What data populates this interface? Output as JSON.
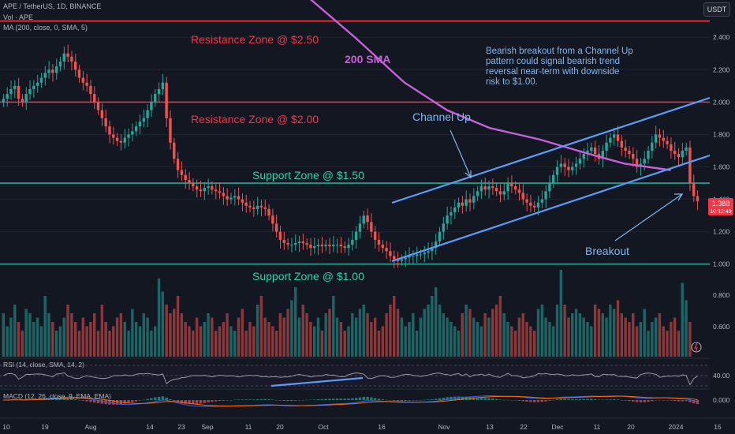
{
  "header": {
    "symbol_line": "APE / TetherUS, 1D, BINANCE",
    "volume_line": "Vol · APE",
    "ma_line": "MA (200, close, 0, SMA, 5)",
    "currency_button": "USDT"
  },
  "chart_data": {
    "type": "candlestick",
    "price_axis": {
      "ticks": [
        "2.400",
        "2.200",
        "2.000",
        "1.800",
        "1.600",
        "1.400",
        "1.200",
        "1.000"
      ],
      "range": [
        0.95,
        2.63
      ]
    },
    "volume_axis": {
      "ticks": [
        "0.800",
        "0.600"
      ]
    },
    "rsi_panel": {
      "label": "RSI (14, close, SMA, 14, 2)",
      "tick": "40.00"
    },
    "macd_panel": {
      "label": "MACD (12, 26, close, 9, EMA, EMA)",
      "tick": "0.000"
    },
    "time_axis": [
      "10",
      "19",
      "Aug",
      "14",
      "23",
      "Sep",
      "11",
      "20",
      "Oct",
      "16",
      "Nov",
      "13",
      "22",
      "Dec",
      "11",
      "20",
      "2024",
      "15"
    ],
    "last_price": {
      "value": "1.388",
      "countdown": "10:12:49"
    },
    "zones": [
      {
        "label": "Resistance Zone @ $2.50",
        "value": 2.5,
        "color": "#f23645"
      },
      {
        "label": "Resistance Zone @ $2.00",
        "value": 2.0,
        "color": "#f23645"
      },
      {
        "label": "Support Zone @ $1.50",
        "value": 1.5,
        "color": "#22ab94"
      },
      {
        "label": "Support Zone @ $1.00",
        "value": 1.0,
        "color": "#22ab94"
      }
    ],
    "annotations": {
      "sma": "200 SMA",
      "channel": "Channel Up",
      "breakout": "Breakout",
      "note": "Bearish breakout from a Channel Up pattern could signal bearish trend reversal near-term with downside risk to $1.00."
    },
    "series_shape": {
      "price_closes": [
        2.02,
        2.05,
        2.08,
        2.1,
        2.02,
        2.0,
        2.05,
        2.08,
        2.1,
        2.12,
        2.15,
        2.18,
        2.2,
        2.18,
        2.22,
        2.25,
        2.3,
        2.28,
        2.25,
        2.2,
        2.15,
        2.12,
        2.1,
        2.05,
        2.0,
        1.95,
        1.9,
        1.85,
        1.8,
        1.78,
        1.76,
        1.75,
        1.78,
        1.8,
        1.82,
        1.85,
        1.88,
        1.9,
        1.95,
        2.0,
        2.05,
        2.08,
        2.12,
        1.9,
        1.75,
        1.65,
        1.58,
        1.55,
        1.52,
        1.5,
        1.48,
        1.46,
        1.45,
        1.47,
        1.48,
        1.46,
        1.45,
        1.44,
        1.42,
        1.4,
        1.41,
        1.42,
        1.4,
        1.38,
        1.36,
        1.35,
        1.34,
        1.36,
        1.35,
        1.34,
        1.3,
        1.25,
        1.2,
        1.15,
        1.13,
        1.12,
        1.12,
        1.13,
        1.14,
        1.13,
        1.12,
        1.1,
        1.11,
        1.12,
        1.11,
        1.12,
        1.11,
        1.12,
        1.12,
        1.11,
        1.1,
        1.12,
        1.15,
        1.2,
        1.25,
        1.3,
        1.26,
        1.2,
        1.15,
        1.12,
        1.1,
        1.08,
        1.05,
        1.03,
        1.02,
        1.03,
        1.04,
        1.05,
        1.05,
        1.06,
        1.06,
        1.07,
        1.08,
        1.1,
        1.14,
        1.2,
        1.25,
        1.3,
        1.32,
        1.35,
        1.38,
        1.36,
        1.4,
        1.38,
        1.42,
        1.45,
        1.48,
        1.46,
        1.48,
        1.47,
        1.45,
        1.43,
        1.45,
        1.5,
        1.48,
        1.46,
        1.44,
        1.4,
        1.38,
        1.36,
        1.35,
        1.38,
        1.4,
        1.45,
        1.5,
        1.55,
        1.6,
        1.62,
        1.6,
        1.58,
        1.6,
        1.62,
        1.65,
        1.68,
        1.7,
        1.72,
        1.68,
        1.65,
        1.7,
        1.75,
        1.78,
        1.8,
        1.76,
        1.72,
        1.7,
        1.68,
        1.65,
        1.6,
        1.62,
        1.65,
        1.7,
        1.75,
        1.8,
        1.78,
        1.76,
        1.74,
        1.7,
        1.68,
        1.66,
        1.7,
        1.72,
        1.5,
        1.42,
        1.388
      ],
      "sma200": [
        [
          0.42,
          2.7
        ],
        [
          0.5,
          2.4
        ],
        [
          0.57,
          2.12
        ],
        [
          0.63,
          1.95
        ],
        [
          0.69,
          1.84
        ],
        [
          0.76,
          1.77
        ],
        [
          0.83,
          1.68
        ],
        [
          0.88,
          1.62
        ],
        [
          0.945,
          1.58
        ]
      ],
      "volume": [
        0.5,
        0.35,
        0.45,
        0.6,
        0.4,
        0.3,
        0.55,
        0.5,
        0.4,
        0.45,
        0.35,
        0.7,
        0.5,
        0.4,
        0.3,
        0.35,
        0.45,
        0.6,
        0.5,
        0.4,
        0.3,
        0.45,
        0.35,
        0.4,
        0.5,
        0.3,
        0.6,
        0.4,
        0.3,
        0.35,
        0.45,
        0.5,
        0.4,
        0.3,
        0.55,
        0.4,
        0.35,
        0.5,
        0.45,
        0.3,
        0.35,
        0.9,
        0.75,
        0.6,
        0.5,
        0.55,
        0.7,
        0.5,
        0.4,
        0.35,
        0.3,
        0.45,
        0.35,
        0.4,
        0.5,
        0.45,
        0.3,
        0.35,
        0.4,
        0.5,
        0.35,
        0.3,
        0.45,
        0.55,
        0.3,
        0.4,
        0.35,
        0.6,
        0.7,
        0.45,
        0.4,
        0.35,
        0.3,
        0.5,
        0.45,
        0.55,
        0.65,
        0.8,
        0.45,
        0.6,
        0.5,
        0.4,
        0.35,
        0.45,
        0.3,
        0.5,
        0.55,
        0.7,
        0.45,
        0.4,
        0.3,
        0.35,
        0.5,
        0.45,
        0.55,
        0.6,
        0.5,
        0.4,
        0.45,
        0.3,
        0.35,
        0.5,
        0.6,
        0.7,
        0.55,
        0.45,
        0.35,
        0.4,
        0.5,
        0.3,
        0.45,
        0.55,
        0.6,
        0.7,
        0.8,
        0.6,
        0.5,
        0.45,
        0.4,
        0.35,
        0.3,
        0.5,
        0.6,
        0.55,
        0.45,
        0.4,
        0.35,
        0.5,
        0.45,
        0.55,
        0.6,
        0.7,
        0.5,
        0.4,
        0.35,
        0.3,
        0.45,
        0.5,
        0.4,
        0.35,
        0.3,
        0.55,
        0.6,
        0.45,
        0.4,
        0.35,
        0.6,
        1.0,
        0.6,
        0.45,
        0.5,
        0.55,
        0.5,
        0.45,
        0.4,
        0.35,
        0.6,
        0.55,
        0.5,
        0.45,
        0.6,
        0.55,
        0.65,
        0.5,
        0.45,
        0.4,
        0.5,
        0.35,
        0.4,
        0.55,
        0.3,
        0.4,
        0.45,
        0.5,
        0.35,
        0.3,
        0.4,
        0.45,
        0.3,
        0.85,
        0.65,
        0.4
      ]
    }
  }
}
